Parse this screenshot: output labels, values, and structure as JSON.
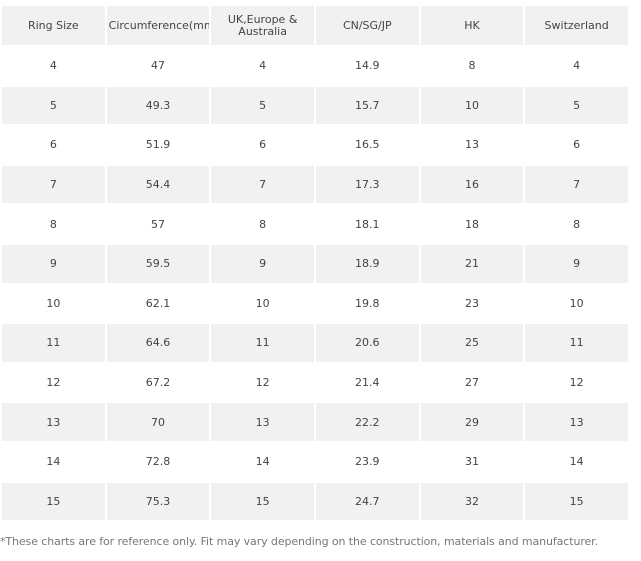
{
  "table": {
    "header": [
      "Ring Size",
      "Circumference(mm)",
      "UK,Europe & Australia",
      "CN/SG/JP",
      "HK",
      "Switzerland"
    ],
    "rows": [
      [
        4,
        47,
        4,
        14.9,
        8,
        4
      ],
      [
        5,
        49.3,
        5,
        15.7,
        10,
        5
      ],
      [
        6,
        51.9,
        6,
        16.5,
        13,
        6
      ],
      [
        7,
        54.4,
        7,
        17.3,
        16,
        7
      ],
      [
        8,
        57,
        8,
        18.1,
        18,
        8
      ],
      [
        9,
        59.5,
        9,
        18.9,
        21,
        9
      ],
      [
        10,
        62.1,
        10,
        19.8,
        23,
        10
      ],
      [
        11,
        64.6,
        11,
        20.6,
        25,
        11
      ],
      [
        12,
        67.2,
        12,
        21.4,
        27,
        12
      ],
      [
        13,
        70,
        13,
        22.2,
        29,
        13
      ],
      [
        14,
        72.8,
        14,
        23.9,
        31,
        14
      ],
      [
        15,
        75.3,
        15,
        24.7,
        32,
        15
      ]
    ]
  },
  "footnote": "*These charts are for reference only. Fit may vary depending on the construction, materials and manufacturer."
}
